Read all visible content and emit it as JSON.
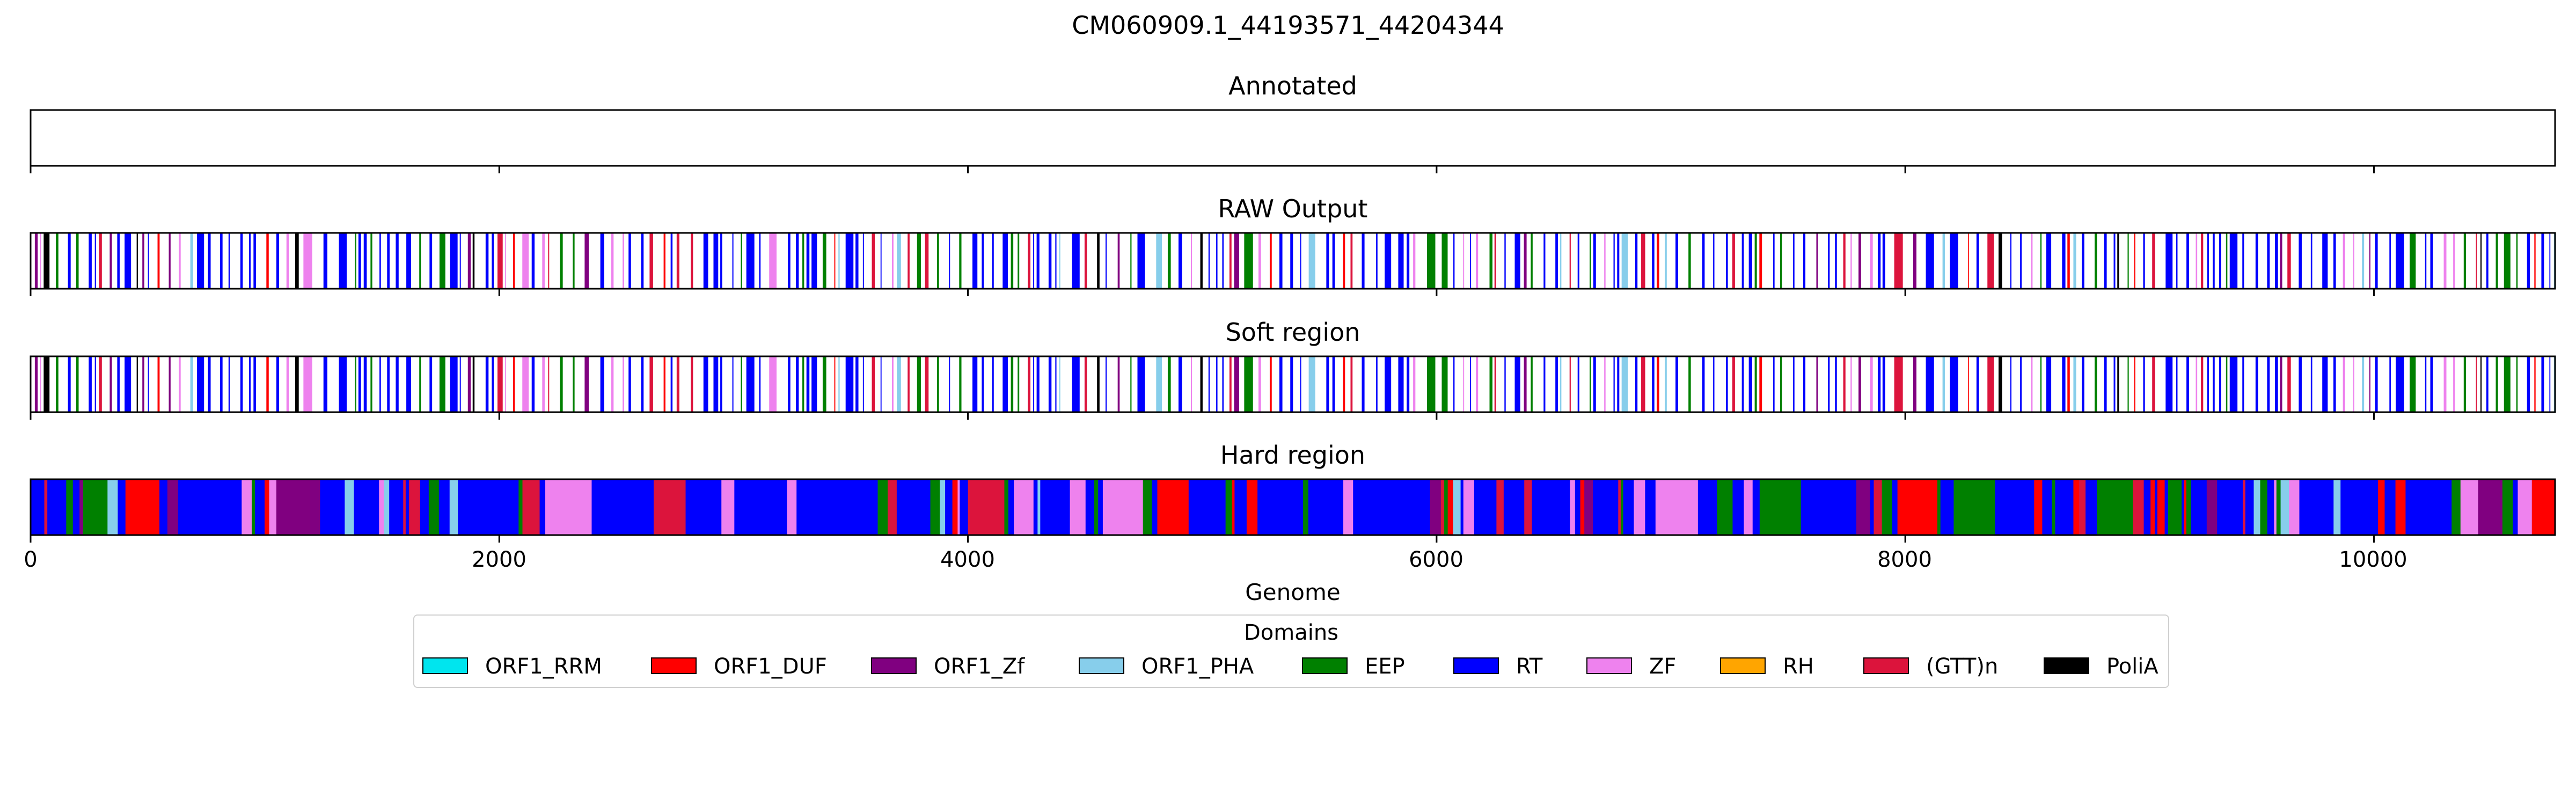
{
  "chart_data": {
    "type": "genome-track",
    "title": "CM060909.1_44193571_44204344",
    "xlabel": "Genome",
    "xlim": [
      0,
      10773
    ],
    "xticks": [
      "0",
      "2000",
      "4000",
      "6000",
      "8000",
      "10000"
    ],
    "tick_values": [
      0,
      2000,
      4000,
      6000,
      8000,
      10000
    ],
    "panels": [
      {
        "name": "Annotated",
        "segments": []
      },
      {
        "name": "RAW Output",
        "track_seed": 7,
        "mode": "sparse"
      },
      {
        "name": "Soft region",
        "track_seed": 7,
        "mode": "sparse"
      },
      {
        "name": "Hard region",
        "track_seed": 13,
        "mode": "dense"
      }
    ],
    "legend": {
      "title": "Domains",
      "items": [
        {
          "label": "ORF1_RRM",
          "color": "#00e5ee"
        },
        {
          "label": "ORF1_DUF",
          "color": "#ff0000"
        },
        {
          "label": "ORF1_Zf",
          "color": "#800080"
        },
        {
          "label": "ORF1_PHA",
          "color": "#87ceeb"
        },
        {
          "label": "EEP",
          "color": "#008000"
        },
        {
          "label": "RT",
          "color": "#0000ff"
        },
        {
          "label": "ZF",
          "color": "#ee82ee"
        },
        {
          "label": "RH",
          "color": "#ffa500"
        },
        {
          "label": "(GTT)n",
          "color": "#dc143c"
        },
        {
          "label": "PoliA",
          "color": "#000000"
        }
      ]
    }
  }
}
